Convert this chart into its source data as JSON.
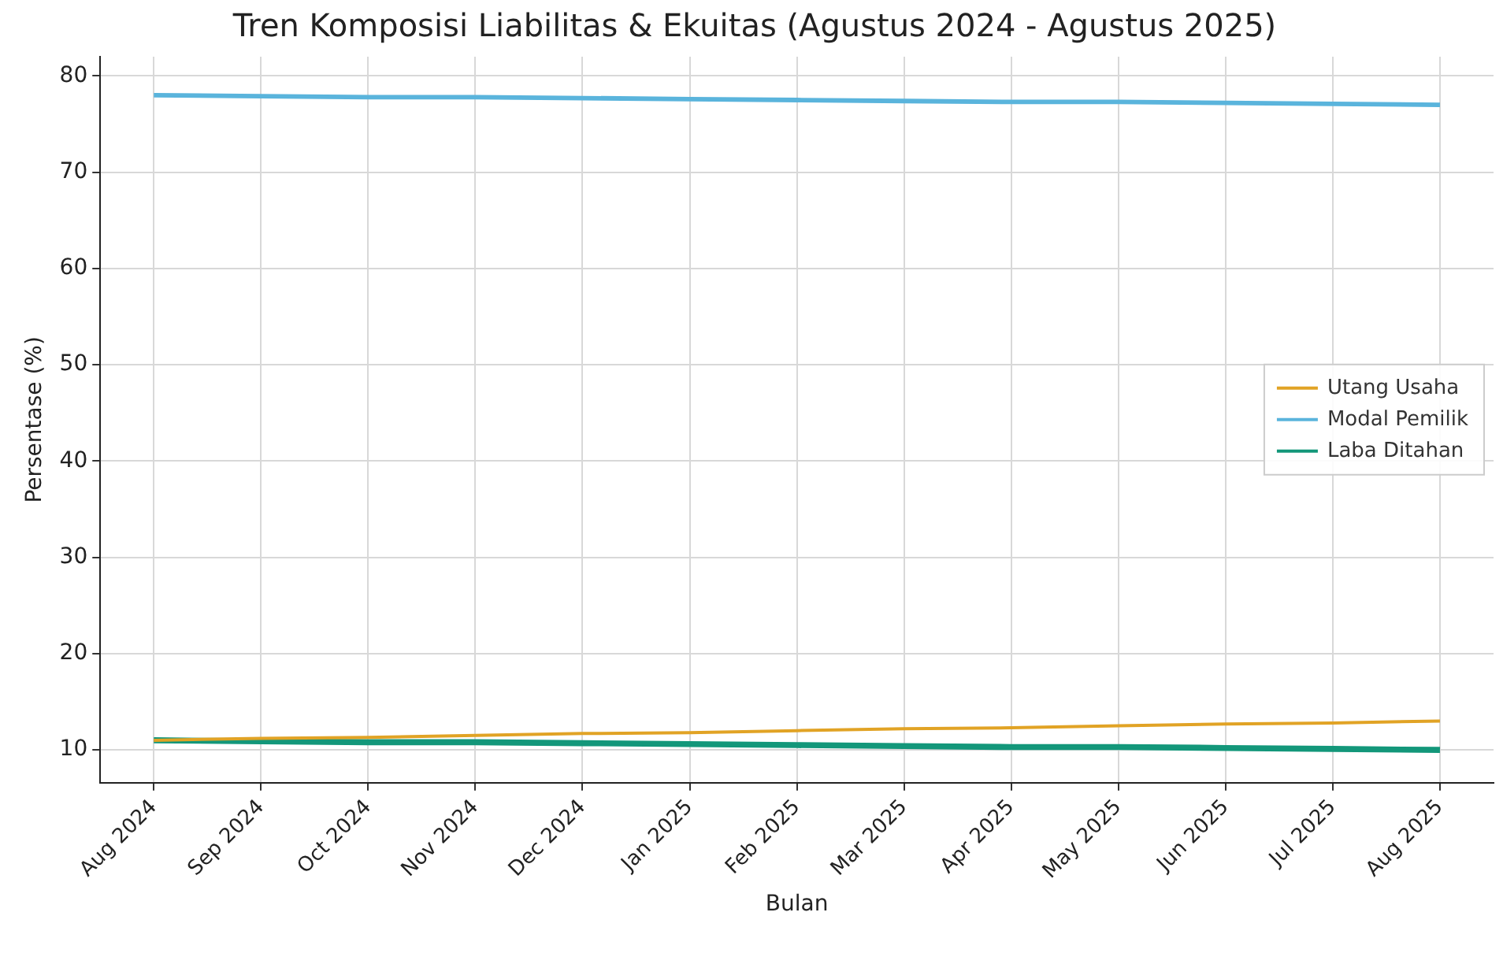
{
  "chart_data": {
    "type": "line",
    "title": "Tren Komposisi Liabilitas & Ekuitas (Agustus 2024 - Agustus 2025)",
    "xlabel": "Bulan",
    "ylabel": "Persentase (%)",
    "categories": [
      "Aug 2024",
      "Sep 2024",
      "Oct 2024",
      "Nov 2024",
      "Dec 2024",
      "Jan 2025",
      "Feb 2025",
      "Mar 2025",
      "Apr 2025",
      "May 2025",
      "Jun 2025",
      "Jul 2025",
      "Aug 2025"
    ],
    "series": [
      {
        "name": "Utang Usaha",
        "color": "#e1a325",
        "values": [
          11,
          11.2,
          11.3,
          11.5,
          11.7,
          11.8,
          12,
          12.2,
          12.3,
          12.5,
          12.7,
          12.8,
          13
        ]
      },
      {
        "name": "Modal Pemilik",
        "color": "#5ab4dc",
        "values": [
          78,
          77.9,
          77.8,
          77.8,
          77.7,
          77.6,
          77.5,
          77.4,
          77.3,
          77.3,
          77.2,
          77.1,
          77
        ]
      },
      {
        "name": "Laba Ditahan",
        "color": "#13977a",
        "values": [
          11,
          10.9,
          10.8,
          10.8,
          10.7,
          10.6,
          10.5,
          10.4,
          10.3,
          10.3,
          10.2,
          10.1,
          10
        ]
      }
    ],
    "ylim": [
      6.6,
      82
    ],
    "yticks": [
      10,
      20,
      30,
      40,
      50,
      60,
      70,
      80
    ],
    "grid": true,
    "legend": "right",
    "marker": "none",
    "line_style": "solid"
  }
}
